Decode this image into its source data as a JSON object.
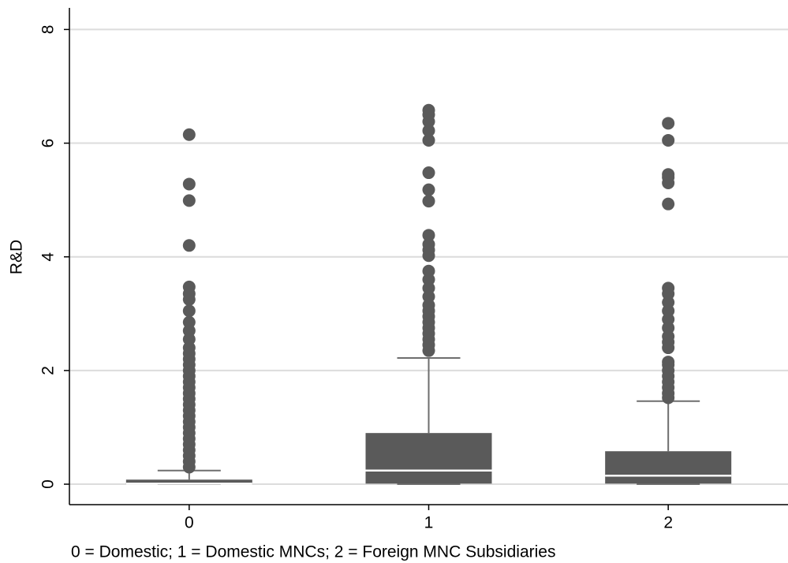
{
  "chart_data": {
    "type": "box",
    "y_label": "R&D",
    "note": "0 = Domestic; 1 = Domestic MNCs; 2 = Foreign MNC Subsidiaries",
    "categories": [
      "0",
      "1",
      "2"
    ],
    "color": "#5a5a5a",
    "median_color": "#ffffff",
    "whisker_color": "#6e6e6e",
    "ylim": [
      -0.36,
      8.38
    ],
    "yticks": [
      0,
      2,
      4,
      6,
      8
    ],
    "grid": true,
    "boxes": [
      {
        "whisker_low": 0,
        "q1": 0,
        "median": 0.01,
        "q3": 0.08,
        "whisker_high": 0.24,
        "outliers": [
          0.3,
          0.4,
          0.5,
          0.6,
          0.7,
          0.8,
          0.9,
          1.0,
          1.1,
          1.2,
          1.3,
          1.4,
          1.5,
          1.6,
          1.7,
          1.8,
          1.9,
          2.0,
          2.1,
          2.2,
          2.3,
          2.4,
          2.55,
          2.7,
          2.85,
          3.05,
          3.25,
          3.35,
          3.47,
          4.2,
          4.99,
          5.28,
          6.15
        ]
      },
      {
        "whisker_low": 0,
        "q1": 0.01,
        "median": 0.24,
        "q3": 0.9,
        "whisker_high": 2.22,
        "outliers": [
          2.35,
          2.45,
          2.55,
          2.65,
          2.75,
          2.85,
          2.95,
          3.05,
          3.15,
          3.3,
          3.45,
          3.6,
          3.75,
          4.02,
          4.12,
          4.22,
          4.38,
          4.98,
          5.18,
          5.48,
          6.05,
          6.22,
          6.38,
          6.5,
          6.58
        ]
      },
      {
        "whisker_low": 0,
        "q1": 0.01,
        "median": 0.15,
        "q3": 0.58,
        "whisker_high": 1.46,
        "outliers": [
          1.52,
          1.6,
          1.7,
          1.8,
          1.9,
          2.0,
          2.1,
          2.15,
          2.4,
          2.5,
          2.6,
          2.75,
          2.9,
          3.05,
          3.2,
          3.35,
          3.45,
          4.93,
          5.3,
          5.4,
          5.45,
          6.05,
          6.35
        ]
      }
    ]
  }
}
